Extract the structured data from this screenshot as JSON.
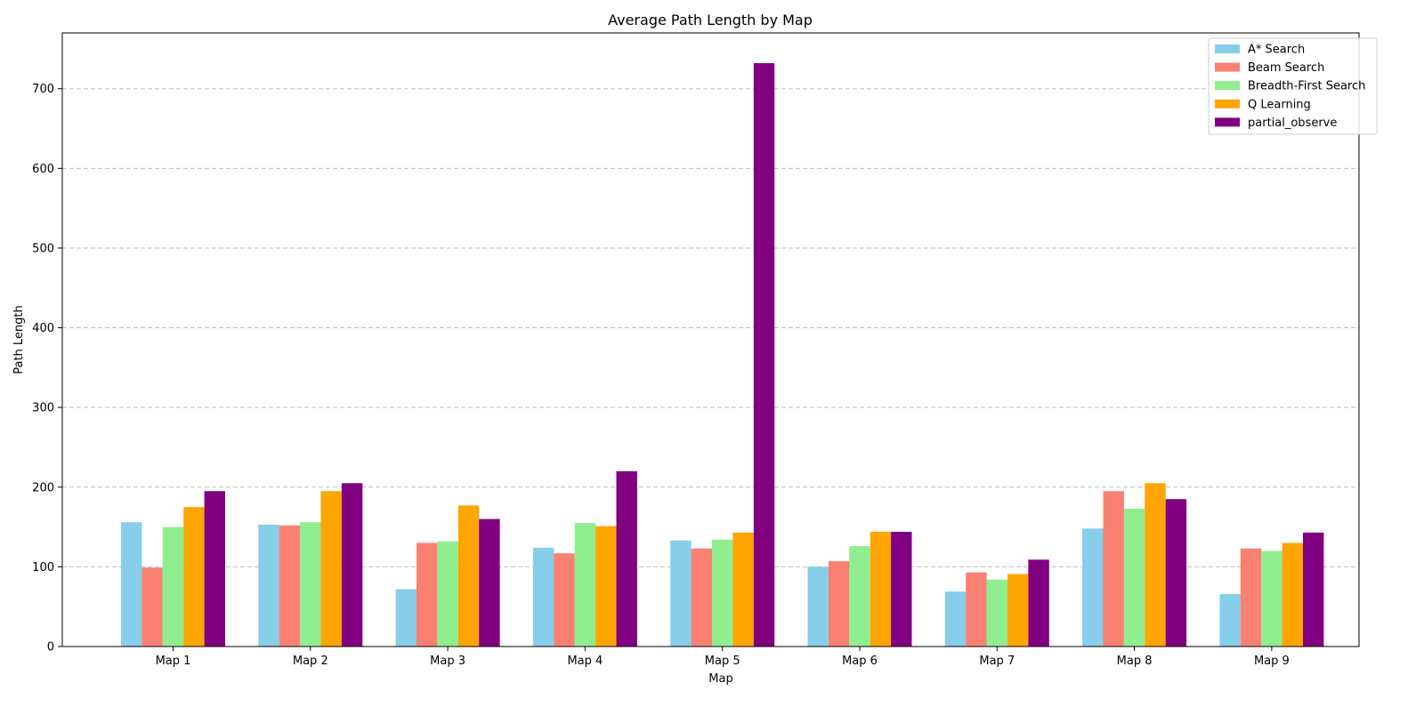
{
  "chart_data": {
    "type": "bar",
    "title": "Average Path Length by Map",
    "xlabel": "Map",
    "ylabel": "Path Length",
    "categories": [
      "Map 1",
      "Map 2",
      "Map 3",
      "Map 4",
      "Map 5",
      "Map 6",
      "Map 7",
      "Map 8",
      "Map 9"
    ],
    "ylim": [
      0,
      770
    ],
    "yticks": [
      0,
      100,
      200,
      300,
      400,
      500,
      600,
      700
    ],
    "grid": "y-dashed",
    "legend_position": "top-right",
    "series": [
      {
        "name": "A* Search",
        "color": "#87CEEB",
        "values": [
          156,
          153,
          72,
          124,
          133,
          100,
          69,
          148,
          66
        ]
      },
      {
        "name": "Beam Search",
        "color": "#FA8072",
        "values": [
          99,
          152,
          130,
          117,
          123,
          107,
          93,
          195,
          123
        ]
      },
      {
        "name": "Breadth-First Search",
        "color": "#90EE90",
        "values": [
          150,
          156,
          132,
          155,
          134,
          126,
          84,
          173,
          120
        ]
      },
      {
        "name": "Q Learning",
        "color": "#FFA500",
        "values": [
          175,
          195,
          177,
          151,
          143,
          144,
          91,
          205,
          130
        ]
      },
      {
        "name": "partial_observe",
        "color": "#800080",
        "values": [
          195,
          205,
          160,
          220,
          732,
          144,
          109,
          185,
          143
        ]
      }
    ]
  }
}
